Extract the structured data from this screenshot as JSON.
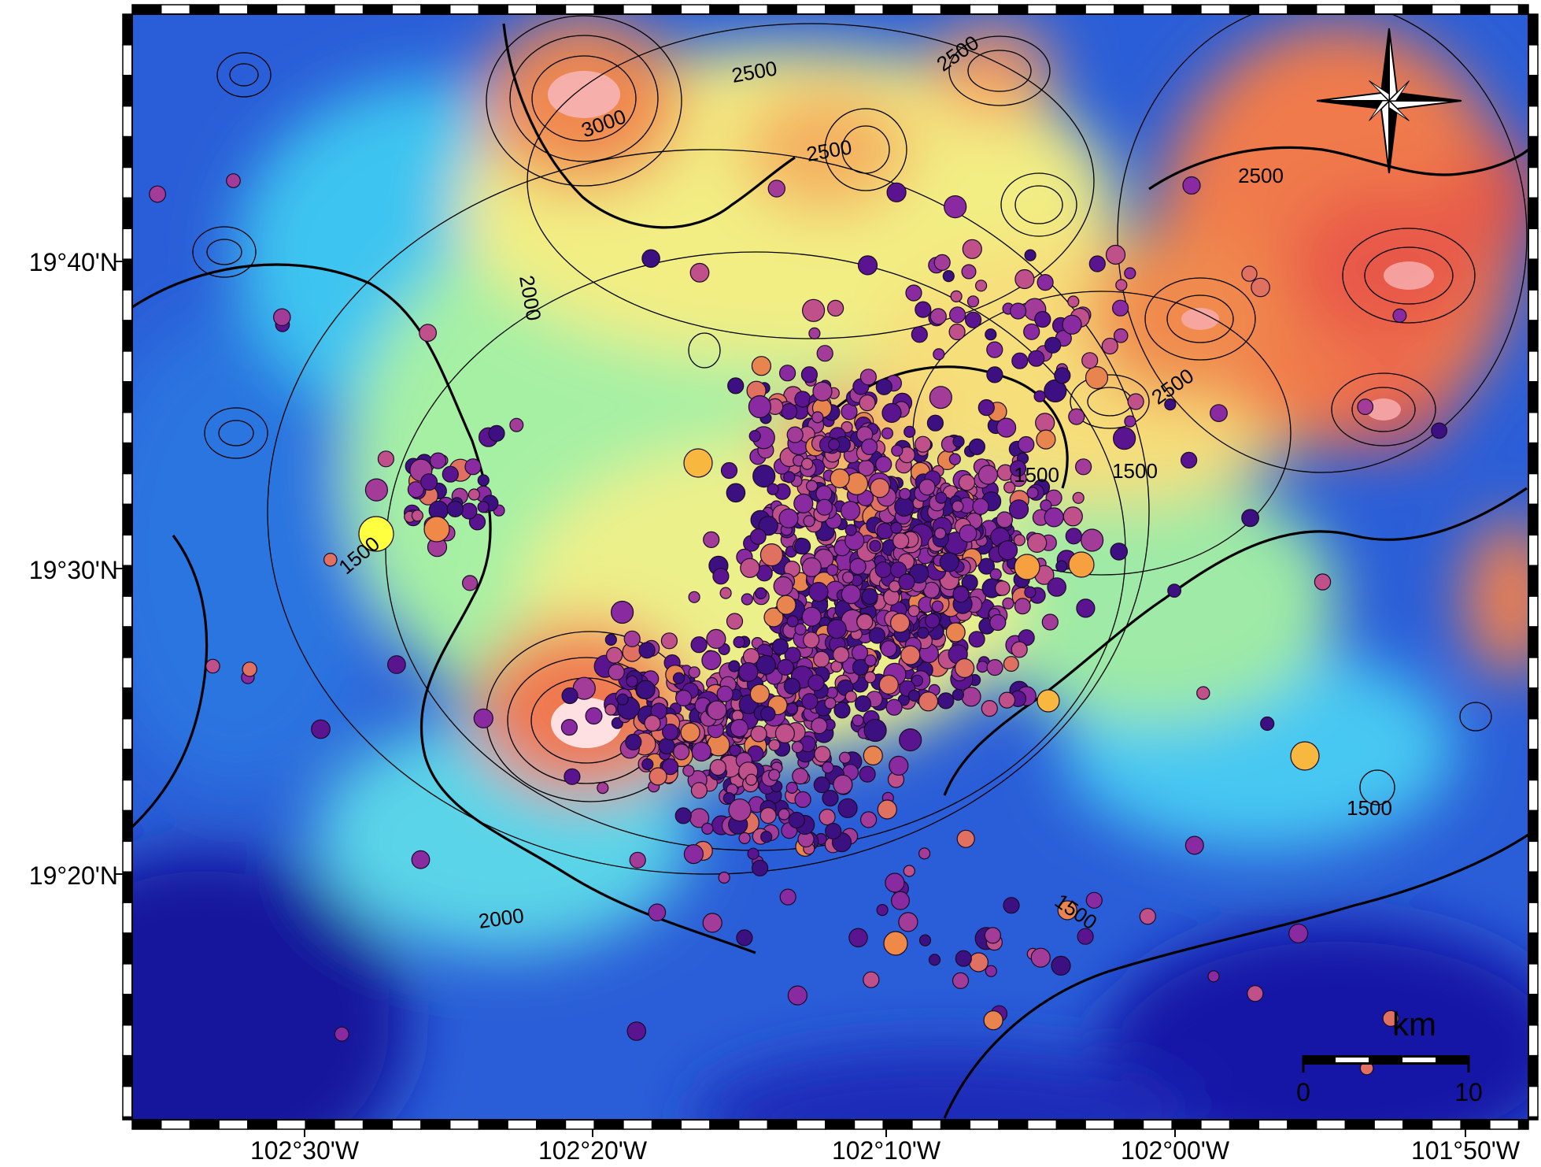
{
  "map": {
    "lon_labels": [
      "102°30'W",
      "102°20'W",
      "102°10'W",
      "102°00'W",
      "101°50'W"
    ],
    "lat_labels": [
      "19°40'N",
      "19°30'N",
      "19°20'N"
    ],
    "contour_labels": [
      "2500",
      "3000",
      "2500",
      "2500",
      "2500",
      "2000",
      "2000",
      "2500",
      "1500",
      "1500",
      "1500",
      "1500",
      "1500"
    ],
    "scale_bar": {
      "unit": "km",
      "start": "0",
      "end": "10"
    },
    "icons": [
      "compass-rose-icon"
    ],
    "colors": {
      "low": "#1a1aa8",
      "mid_low": "#3cc2f0",
      "mid": "#b8f49c",
      "mid_high": "#f8e27a",
      "high": "#f0604a",
      "peak": "#ffe6ea",
      "event_small": "#3c1080",
      "event_mid": "#8a2aa0",
      "event_large": "#e07060",
      "event_max": "#ffff40"
    }
  }
}
